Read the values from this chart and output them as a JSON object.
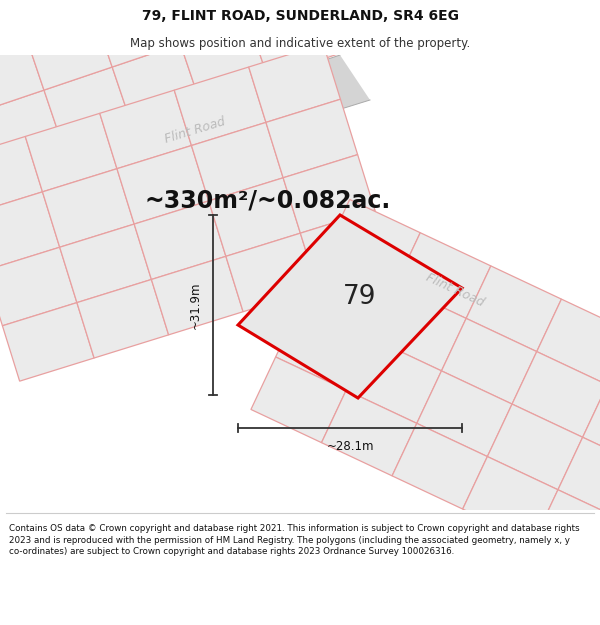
{
  "title": "79, FLINT ROAD, SUNDERLAND, SR4 6EG",
  "subtitle": "Map shows position and indicative extent of the property.",
  "area_text": "~330m²/~0.082ac.",
  "property_number": "79",
  "dim_width": "~28.1m",
  "dim_height": "~31.9m",
  "footer": "Contains OS data © Crown copyright and database right 2021. This information is subject to Crown copyright and database rights 2023 and is reproduced with the permission of HM Land Registry. The polygons (including the associated geometry, namely x, y co-ordinates) are subject to Crown copyright and database rights 2023 Ordnance Survey 100026316.",
  "map_bg": "#ffffff",
  "road_fill": "#e0e0e0",
  "road_edge": "#c0c0c0",
  "property_fill": "#e8e8e8",
  "property_edge": "#dd0000",
  "neighbor_fill": "#f0f0f0",
  "neighbor_edge": "#e8b0b0",
  "footer_bg": "#ffffff",
  "title_bg": "#ffffff",
  "dim_line_color": "#333333",
  "road_label_color": "#bbbbbb",
  "area_text_color": "#111111"
}
